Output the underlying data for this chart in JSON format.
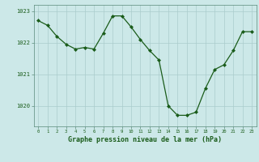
{
  "x": [
    0,
    1,
    2,
    3,
    4,
    5,
    6,
    7,
    8,
    9,
    10,
    11,
    12,
    13,
    14,
    15,
    16,
    17,
    18,
    19,
    20,
    21,
    22,
    23
  ],
  "y": [
    1022.7,
    1022.55,
    1022.2,
    1021.95,
    1021.8,
    1021.85,
    1021.8,
    1022.3,
    1022.85,
    1022.85,
    1022.5,
    1022.1,
    1021.75,
    1021.45,
    1020.0,
    1019.7,
    1019.7,
    1019.8,
    1020.55,
    1021.15,
    1021.3,
    1021.75,
    1022.35,
    1022.35
  ],
  "line_color": "#1a5c1a",
  "marker": "D",
  "markersize": 2.0,
  "linewidth": 0.9,
  "bg_color": "#cce8e8",
  "grid_color": "#aacccc",
  "tick_label_color": "#1a5c1a",
  "xlabel": "Graphe pression niveau de la mer (hPa)",
  "xlabel_fontsize": 6.0,
  "ylabel_ticks": [
    1020,
    1021,
    1022,
    1023
  ],
  "ylim": [
    1019.35,
    1023.2
  ],
  "xlim": [
    -0.5,
    23.5
  ]
}
